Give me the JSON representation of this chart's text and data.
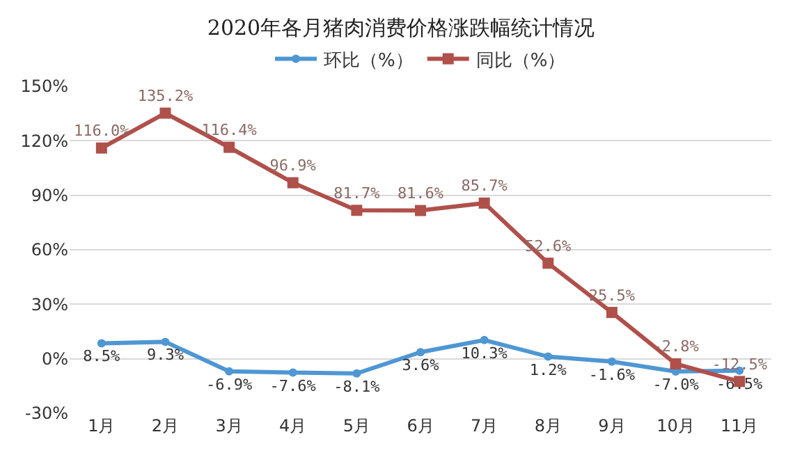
{
  "chart_data": {
    "type": "line",
    "title": "2020年各月猪肉消费价格涨跌幅统计情况",
    "categories": [
      "1月",
      "2月",
      "3月",
      "4月",
      "5月",
      "6月",
      "7月",
      "8月",
      "9月",
      "10月",
      "11月"
    ],
    "series": [
      {
        "name": "环比（%）",
        "color": "#4f97d3",
        "marker": "circle",
        "values": [
          8.5,
          9.3,
          -6.9,
          -7.6,
          -8.1,
          3.6,
          10.3,
          1.2,
          -1.6,
          -7.0,
          -6.5
        ],
        "value_labels": [
          "8.5%",
          "9.3%",
          "-6.9%",
          "-7.6%",
          "-8.1%",
          "3.6%",
          "10.3%",
          "1.2%",
          "-1.6%",
          "-7.0%",
          "-6.5%"
        ]
      },
      {
        "name": "同比（%）",
        "color": "#b0504b",
        "marker": "square",
        "values": [
          116.0,
          135.2,
          116.4,
          96.9,
          81.7,
          81.6,
          85.7,
          52.6,
          25.5,
          -2.8,
          -12.5
        ],
        "value_labels": [
          "116.0%",
          "135.2%",
          "116.4%",
          "96.9%",
          "81.7%",
          "81.6%",
          "85.7%",
          "52.6%",
          "25.5%",
          "-2.8%",
          "-12.5%"
        ]
      }
    ],
    "ylim": [
      -30,
      150
    ],
    "yticks": [
      {
        "value": -30,
        "label": "-30%"
      },
      {
        "value": 0,
        "label": "0%"
      },
      {
        "value": 30,
        "label": "30%"
      },
      {
        "value": 60,
        "label": "60%"
      },
      {
        "value": 90,
        "label": "90%"
      },
      {
        "value": 120,
        "label": "120%"
      },
      {
        "value": 150,
        "label": "150%"
      }
    ],
    "grid": "y",
    "legend": "top"
  }
}
